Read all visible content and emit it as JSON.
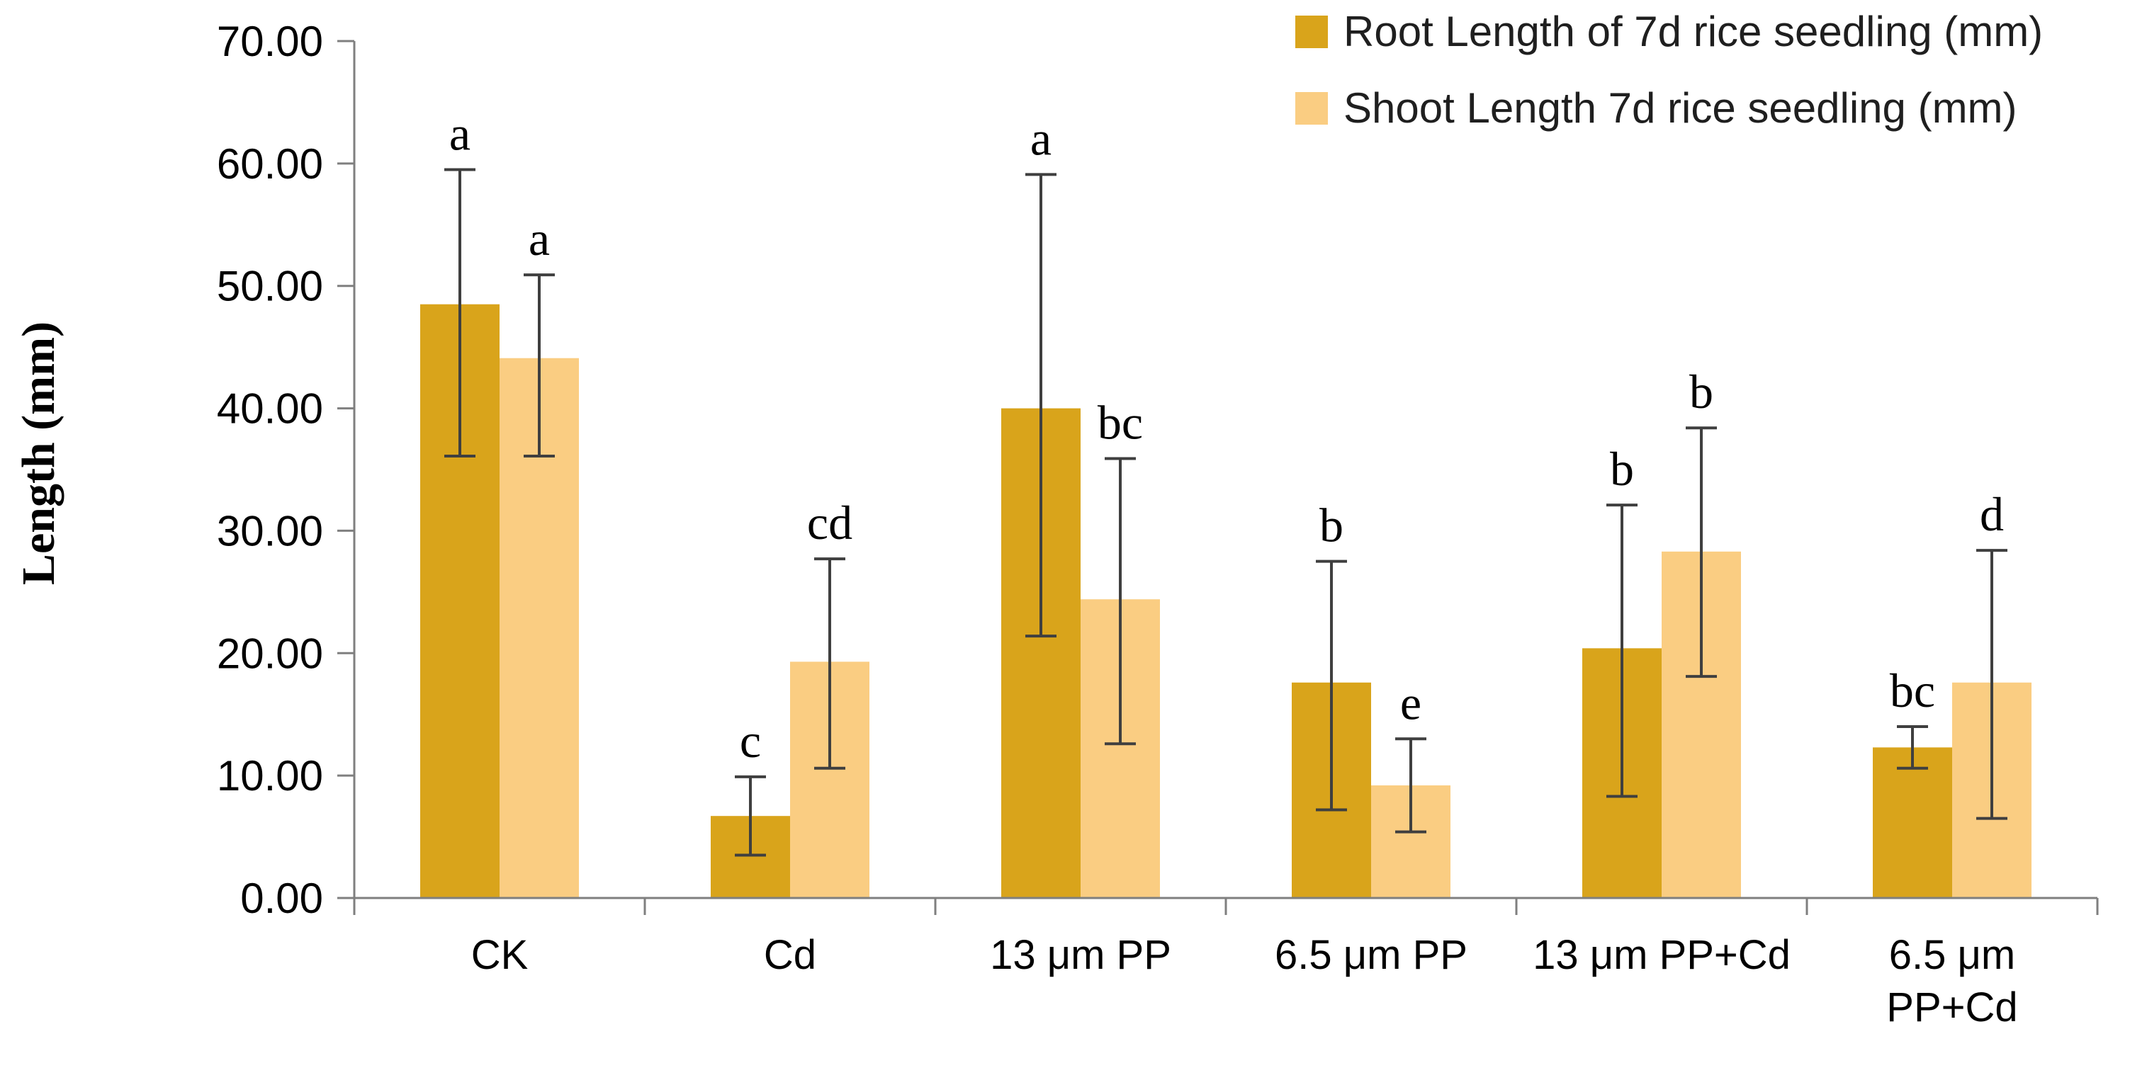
{
  "chart_data": {
    "type": "bar",
    "title": "",
    "ylabel": "Length (mm)",
    "xlabel": "",
    "ylim": [
      0,
      70
    ],
    "ytick_step": 10,
    "ytick_decimals": 2,
    "grid": false,
    "legend_position": "top-right",
    "categories": [
      "CK",
      "Cd",
      "13 μm PP",
      "6.5 μm PP",
      "13 μm PP+Cd",
      "6.5 μm\nPP+Cd"
    ],
    "series": [
      {
        "name": "Root Length of 7d rice seedling (mm)",
        "color": "#D9A41B",
        "values": [
          48.5,
          6.7,
          40.0,
          17.6,
          20.4,
          12.3
        ],
        "error_plus": [
          11.0,
          3.2,
          19.1,
          9.9,
          11.7,
          1.7
        ],
        "error_minus": [
          12.4,
          3.2,
          18.6,
          10.4,
          12.1,
          1.7
        ],
        "letters": [
          "a",
          "c",
          "a",
          "b",
          "b",
          "bc"
        ]
      },
      {
        "name": "Shoot Length 7d rice seedling (mm)",
        "color": "#FACD82",
        "values": [
          44.1,
          19.3,
          24.4,
          9.2,
          28.3,
          17.6
        ],
        "error_plus": [
          6.8,
          8.4,
          11.5,
          3.8,
          10.1,
          10.8
        ],
        "error_minus": [
          8.0,
          8.7,
          11.8,
          3.8,
          10.2,
          11.1
        ],
        "letters": [
          "a",
          "cd",
          "bc",
          "e",
          "b",
          "d"
        ]
      }
    ],
    "colors": {
      "axis": "#7F7F7F",
      "error_bar": "#3F3F3F",
      "text": "#000000"
    }
  }
}
